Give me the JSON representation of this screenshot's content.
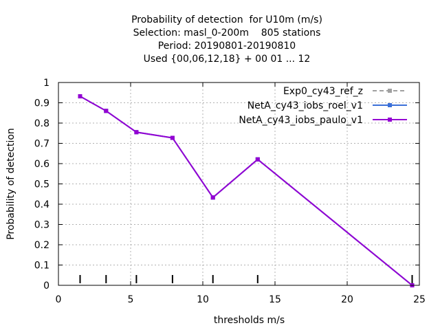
{
  "chart_data": {
    "type": "line",
    "title_lines": [
      "Probability of detection  for U10m (m/s)",
      "Selection: masl_0-200m    805 stations",
      "Period: 20190801-20190810",
      "Used {00,06,12,18} + 00 01 ... 12"
    ],
    "xlabel": "thresholds m/s",
    "ylabel": "Probability of detection",
    "xlim": [
      0,
      25
    ],
    "ylim": [
      0,
      1
    ],
    "xticks": [
      0,
      5,
      10,
      15,
      20,
      25
    ],
    "yticks": [
      0,
      0.1,
      0.2,
      0.3,
      0.4,
      0.5,
      0.6,
      0.7,
      0.8,
      0.9,
      1
    ],
    "grid": true,
    "legend_position": "top-right",
    "threshold_marks": [
      1.5,
      3.3,
      5.4,
      7.9,
      10.7,
      13.8,
      24.5
    ],
    "series": [
      {
        "name": "Exp0_cy43_ref_z",
        "color": "#a0a0a0",
        "dash": true,
        "x": [
          1.5,
          3.3,
          5.4,
          7.9,
          10.7,
          13.8,
          24.5
        ],
        "y": [
          0.932,
          0.86,
          0.755,
          0.727,
          0.433,
          0.621,
          0.0
        ]
      },
      {
        "name": "NetA_cy43_iobs_roel_v1",
        "color": "#3a6fd8",
        "dash": false,
        "x": [
          1.5,
          3.3,
          5.4,
          7.9,
          10.7,
          13.8,
          24.5
        ],
        "y": [
          0.932,
          0.86,
          0.755,
          0.727,
          0.433,
          0.621,
          0.0
        ]
      },
      {
        "name": "NetA_cy43_iobs_paulo_v1",
        "color": "#9400d3",
        "dash": false,
        "x": [
          1.5,
          3.3,
          5.4,
          7.9,
          10.7,
          13.8,
          24.5
        ],
        "y": [
          0.932,
          0.86,
          0.755,
          0.727,
          0.433,
          0.621,
          0.0
        ]
      }
    ]
  }
}
